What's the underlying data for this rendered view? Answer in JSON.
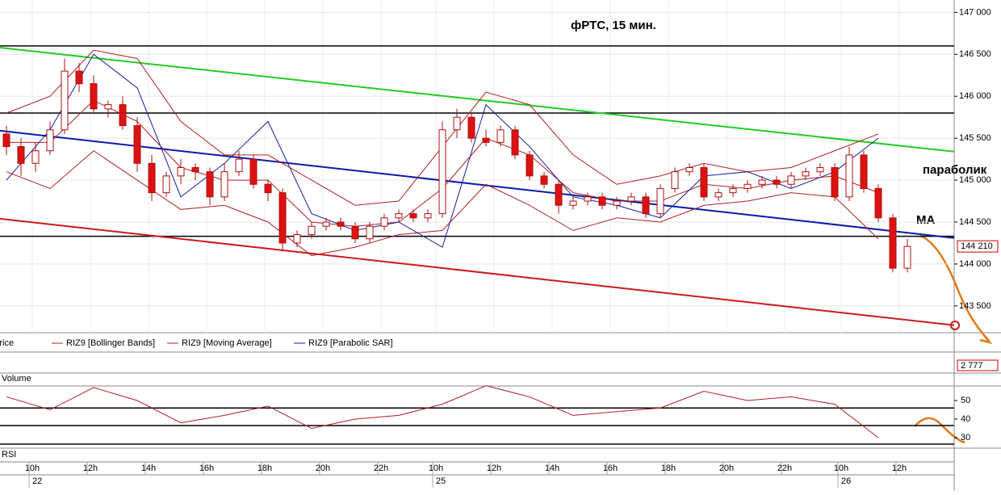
{
  "chart_data": {
    "type": "candlestick",
    "title": "фРТС,  15 мин.",
    "annotations": [
      "параболик",
      "MA"
    ],
    "legend": [
      "Price",
      "RIZ9 [Bollinger Bands]",
      "RIZ9 [Moving Average]",
      "RIZ9 [Parabolic SAR]"
    ],
    "ylim": [
      143200,
      147100
    ],
    "yticks": [
      {
        "value": 147000,
        "label": "147 000"
      },
      {
        "value": 146500,
        "label": "146 500"
      },
      {
        "value": 146000,
        "label": "146 000"
      },
      {
        "value": 145500,
        "label": "145 500"
      },
      {
        "value": 145000,
        "label": "145 000"
      },
      {
        "value": 144500,
        "label": "144 500"
      },
      {
        "value": 144000,
        "label": "144 000"
      },
      {
        "value": 143500,
        "label": "143 500"
      }
    ],
    "last_price": {
      "value": 144210,
      "label": "144 210"
    },
    "up_color": "#ffffff",
    "down_color": "#dd1111",
    "outline_color": "#aa1010",
    "open": [
      145550,
      145400,
      145200,
      145350,
      145600,
      146300,
      146150,
      145850,
      145900,
      145650,
      145200,
      144850,
      145050,
      145150,
      145100,
      144800,
      145100,
      145250,
      144950,
      144850,
      144250,
      144350,
      144450,
      144500,
      144450,
      144300,
      144450,
      144550,
      144600,
      144550,
      144600,
      145600,
      145750,
      145500,
      145450,
      145600,
      145300,
      145050,
      144950,
      144700,
      144750,
      144800,
      144700,
      144750,
      144800,
      144600,
      144900,
      145100,
      145150,
      144800,
      144850,
      144900,
      144950,
      145000,
      144950,
      145050,
      145100,
      145150,
      144800,
      145300,
      144900,
      144550,
      143950
    ],
    "close": [
      145400,
      145200,
      145350,
      145600,
      146300,
      146150,
      145850,
      145900,
      145650,
      145200,
      144850,
      145050,
      145150,
      145100,
      144800,
      145100,
      145250,
      144950,
      144850,
      144250,
      144350,
      144450,
      144500,
      144450,
      144300,
      144450,
      144550,
      144600,
      144550,
      144600,
      145600,
      145750,
      145500,
      145450,
      145600,
      145300,
      145050,
      144950,
      144700,
      144750,
      144800,
      144700,
      144750,
      144800,
      144600,
      144900,
      145100,
      145150,
      144800,
      144850,
      144900,
      144950,
      145000,
      144950,
      145050,
      145100,
      145150,
      144800,
      145300,
      144900,
      144550,
      143950,
      144210
    ],
    "high": [
      145650,
      145500,
      145450,
      145700,
      146450,
      146400,
      146250,
      145950,
      146000,
      145750,
      145300,
      145100,
      145250,
      145200,
      145150,
      145200,
      145350,
      145300,
      145000,
      144900,
      144400,
      144500,
      144550,
      144550,
      144500,
      144500,
      144600,
      144650,
      144650,
      144650,
      145700,
      145850,
      145800,
      145600,
      145650,
      145650,
      145350,
      145100,
      145000,
      144800,
      144850,
      144850,
      144800,
      144850,
      144850,
      144950,
      145150,
      145200,
      145200,
      144900,
      144950,
      145000,
      145050,
      145050,
      145100,
      145150,
      145200,
      145200,
      145400,
      145350,
      144950,
      144600,
      144300
    ],
    "low": [
      145300,
      145050,
      145100,
      145300,
      145550,
      146050,
      145800,
      145750,
      145600,
      145100,
      144750,
      144800,
      144950,
      145000,
      144700,
      144750,
      145050,
      144900,
      144750,
      144150,
      144200,
      144300,
      144400,
      144400,
      144250,
      144250,
      144400,
      144500,
      144500,
      144500,
      144550,
      145500,
      145450,
      145400,
      145400,
      145250,
      145000,
      144900,
      144600,
      144650,
      144700,
      144650,
      144650,
      144700,
      144550,
      144550,
      144850,
      145050,
      144750,
      144750,
      144800,
      144850,
      144900,
      144900,
      144900,
      145000,
      145050,
      144750,
      144750,
      144850,
      144500,
      143900,
      143900
    ],
    "levels": [
      146600,
      145800,
      144330
    ],
    "trendlines": [
      {
        "color": "#22cc22",
        "start": 146580,
        "end": 145340
      },
      {
        "color": "#0a1aa8",
        "start": 145590,
        "end": 144310
      },
      {
        "color": "#cc1a1a",
        "start": 144540,
        "end": 143270
      }
    ],
    "indicator_x": [
      0,
      3,
      6,
      9,
      12,
      15,
      18,
      21,
      24,
      27,
      30,
      33,
      36,
      39,
      42,
      45,
      48,
      51,
      54,
      57,
      60
    ],
    "ma": {
      "color": "#b02020",
      "values": [
        145450,
        145450,
        145950,
        145700,
        145150,
        145000,
        145000,
        144500,
        144450,
        144500,
        144900,
        145500,
        145300,
        144850,
        144750,
        144750,
        144950,
        144900,
        145000,
        145050,
        144850
      ]
    },
    "bb_upper": {
      "color": "#b02020",
      "values": [
        145800,
        146000,
        146550,
        146450,
        145700,
        145300,
        145300,
        145000,
        144700,
        144750,
        145400,
        146050,
        145900,
        145300,
        144950,
        145050,
        145200,
        145100,
        145150,
        145350,
        145550
      ]
    },
    "bb_lower": {
      "color": "#b02020",
      "values": [
        145100,
        144900,
        145350,
        145000,
        144650,
        144700,
        144500,
        144100,
        144200,
        144350,
        144400,
        144950,
        144700,
        144400,
        144550,
        144500,
        144700,
        144750,
        144850,
        144800,
        144300
      ]
    },
    "sar": {
      "color": "#1a1aa0",
      "values": [
        145000,
        145600,
        146500,
        146100,
        144800,
        145200,
        145700,
        144600,
        144400,
        144500,
        144200,
        145900,
        145400,
        144800,
        144700,
        144550,
        145050,
        145100,
        144900,
        145100,
        145500
      ]
    },
    "volume_label": "Volume",
    "volume_last": "2 777",
    "rsi": {
      "label": "RSI",
      "color": "#b02020",
      "ylim": [
        26.5,
        54.8
      ],
      "yticks": [
        50,
        40,
        30
      ],
      "levels": [
        46,
        36.5
      ],
      "values": [
        52,
        45,
        57,
        50,
        38,
        42,
        47,
        35,
        40,
        42,
        48,
        58,
        52,
        42,
        44,
        46,
        55,
        50,
        52,
        48,
        30
      ]
    },
    "time_labels": [
      "10h",
      "12h",
      "14h",
      "16h",
      "18h",
      "20h",
      "22h",
      "10h",
      "12h",
      "14h",
      "16h",
      "18h",
      "20h",
      "22h",
      "10h",
      "12h"
    ],
    "date_labels": [
      "22",
      "25",
      "26"
    ]
  }
}
